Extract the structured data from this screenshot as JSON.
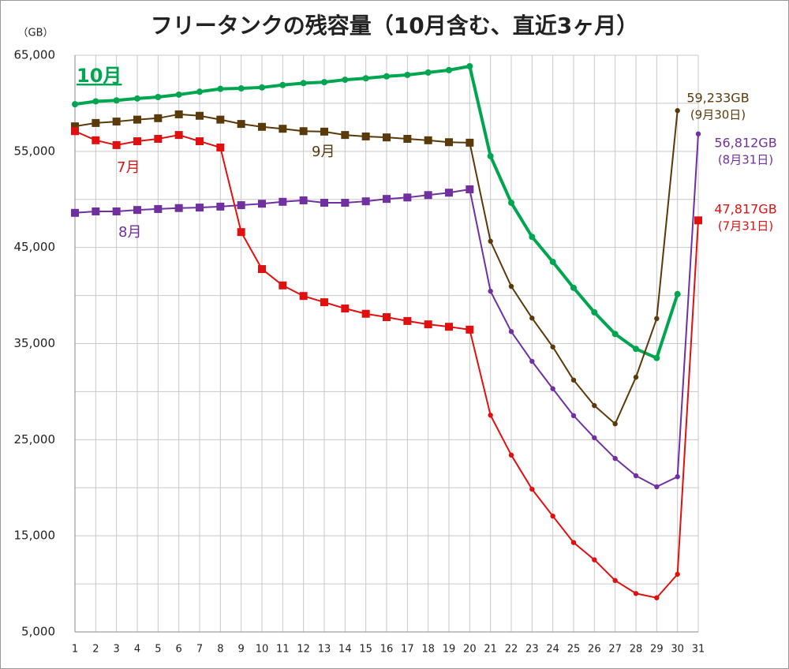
{
  "chart_data": {
    "type": "line",
    "title": "フリータンクの残容量（10月含む、直近3ヶ月）",
    "y_unit": "（GB）",
    "x": [
      1,
      2,
      3,
      4,
      5,
      6,
      7,
      8,
      9,
      10,
      11,
      12,
      13,
      14,
      15,
      16,
      17,
      18,
      19,
      20,
      21,
      22,
      23,
      24,
      25,
      26,
      27,
      28,
      29,
      30,
      31
    ],
    "xlim": [
      1,
      31
    ],
    "ylim": [
      5000,
      65000
    ],
    "yticks": [
      {
        "value": 5000,
        "label": "5,000"
      },
      {
        "value": 15000,
        "label": "15,000"
      },
      {
        "value": 25000,
        "label": "25,000"
      },
      {
        "value": 35000,
        "label": "35,000"
      },
      {
        "value": 45000,
        "label": "45,000"
      },
      {
        "value": 55000,
        "label": "55,000"
      },
      {
        "value": 65000,
        "label": "65,000"
      }
    ],
    "minor_yticks": [
      10000,
      20000,
      30000,
      40000,
      50000,
      60000
    ],
    "grid": true,
    "series": [
      {
        "name": "10月",
        "color": "#00a550",
        "marker": "circle",
        "width": 4,
        "values": [
          59900,
          60200,
          60300,
          60500,
          60650,
          60900,
          61200,
          61500,
          61550,
          61650,
          61900,
          62100,
          62200,
          62450,
          62600,
          62800,
          62950,
          63200,
          63450,
          63850,
          54500,
          49650,
          46100,
          43500,
          40800,
          38250,
          36000,
          34450,
          33500,
          40150,
          null
        ]
      },
      {
        "name": "9月",
        "color": "#5a3a0a",
        "marker": "square",
        "width": 2,
        "values": [
          57600,
          57950,
          58100,
          58300,
          58450,
          58850,
          58700,
          58300,
          57850,
          57550,
          57350,
          57100,
          57050,
          56700,
          56550,
          56450,
          56300,
          56150,
          55950,
          55900,
          45650,
          40950,
          37650,
          34650,
          31200,
          28550,
          26650,
          31500,
          37600,
          59233,
          null
        ],
        "value_labels": [
          null,
          null,
          null,
          null,
          null,
          null,
          null,
          null,
          null,
          null,
          null,
          null,
          null,
          null,
          null,
          null,
          null,
          null,
          null,
          null,
          null,
          null,
          null,
          null,
          null,
          null,
          null,
          null,
          null,
          "59,233GB",
          null
        ],
        "note": "(9月30日)"
      },
      {
        "name": "8月",
        "color": "#7030a0",
        "marker": "square",
        "width": 2,
        "values": [
          48600,
          48750,
          48750,
          48900,
          49000,
          49100,
          49150,
          49250,
          49400,
          49550,
          49750,
          49900,
          49650,
          49650,
          49800,
          50050,
          50200,
          50450,
          50700,
          51050,
          40450,
          36250,
          33150,
          30300,
          27500,
          25200,
          23050,
          21250,
          20100,
          21150,
          56812
        ],
        "value_labels": [
          null,
          null,
          null,
          null,
          null,
          null,
          null,
          null,
          null,
          null,
          null,
          null,
          null,
          null,
          null,
          null,
          null,
          null,
          null,
          null,
          null,
          null,
          null,
          null,
          null,
          null,
          null,
          null,
          null,
          null,
          "56,812GB"
        ],
        "note": "(8月31日)"
      },
      {
        "name": "7月",
        "color": "#e01010",
        "marker": "square",
        "width": 2,
        "values": [
          57100,
          56150,
          55650,
          56050,
          56300,
          56700,
          56050,
          55400,
          46600,
          42750,
          41050,
          39950,
          39300,
          38650,
          38100,
          37750,
          37350,
          37000,
          36750,
          36450,
          27550,
          23400,
          19850,
          17050,
          14300,
          12500,
          10350,
          9000,
          8550,
          11000,
          47817
        ],
        "value_labels": [
          null,
          null,
          null,
          null,
          null,
          null,
          null,
          null,
          null,
          null,
          null,
          null,
          null,
          null,
          null,
          null,
          null,
          null,
          null,
          null,
          null,
          null,
          null,
          null,
          null,
          null,
          null,
          null,
          null,
          null,
          "47,817GB"
        ],
        "note": "(7月31日)"
      }
    ]
  }
}
